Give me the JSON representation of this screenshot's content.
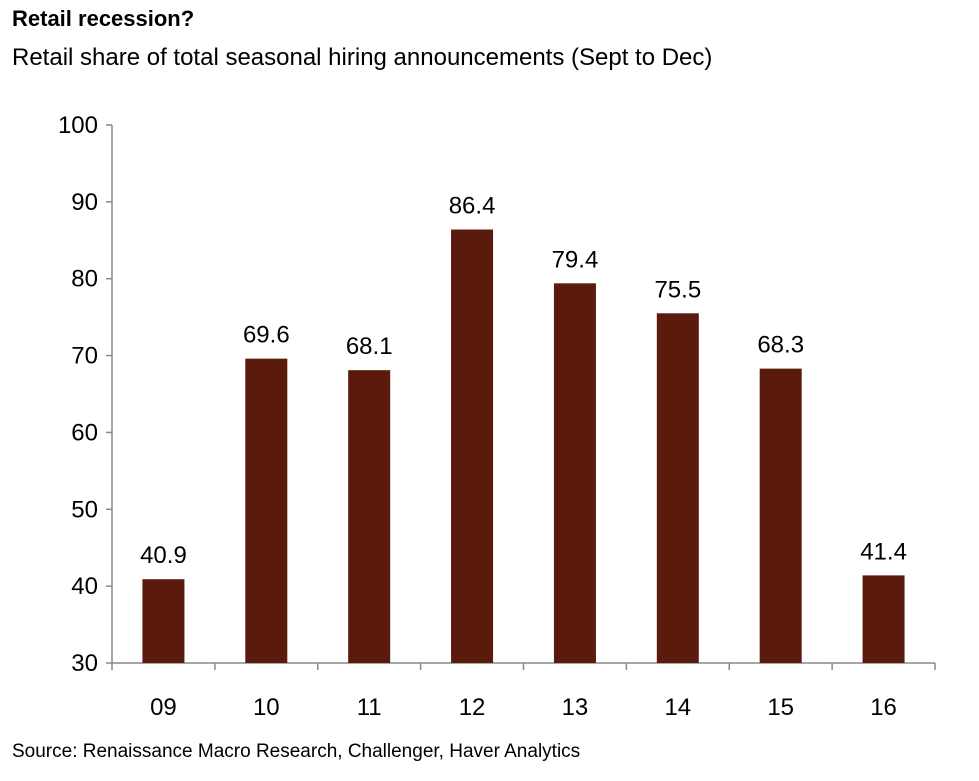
{
  "chart_data": {
    "type": "bar",
    "title": "Retail recession?",
    "subtitle": "Retail share of total seasonal hiring announcements (Sept to Dec)",
    "categories": [
      "09",
      "10",
      "11",
      "12",
      "13",
      "14",
      "15",
      "16"
    ],
    "values": [
      40.9,
      69.6,
      68.1,
      86.4,
      79.4,
      75.5,
      68.3,
      41.4
    ],
    "data_labels": [
      "40.9",
      "69.6",
      "68.1",
      "86.4",
      "79.4",
      "75.5",
      "68.3",
      "41.4"
    ],
    "xlabel": "",
    "ylabel": "",
    "ylim": [
      30,
      100
    ],
    "yticks": [
      30,
      40,
      50,
      60,
      70,
      80,
      90,
      100
    ],
    "grid": false,
    "bar_color": "#5a1a0c",
    "source": "Source:  Renaissance Macro Research, Challenger, Haver Analytics"
  }
}
